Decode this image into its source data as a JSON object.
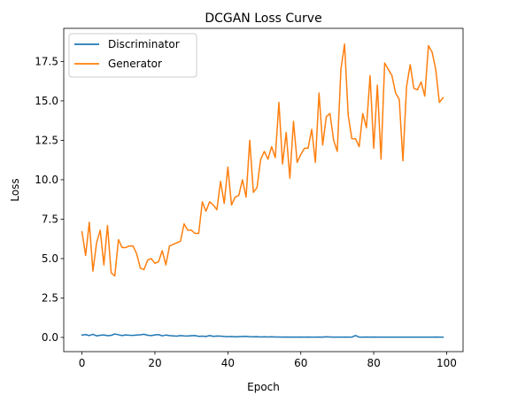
{
  "chart_data": {
    "type": "line",
    "title": "DCGAN Loss Curve",
    "xlabel": "Epoch",
    "ylabel": "Loss",
    "xlim": [
      -5,
      104.5
    ],
    "ylim": [
      -0.9,
      19.6
    ],
    "xticks": [
      0,
      20,
      40,
      60,
      80,
      100
    ],
    "yticks": [
      0.0,
      2.5,
      5.0,
      7.5,
      10.0,
      12.5,
      15.0,
      17.5
    ],
    "ytick_labels": [
      "0.0",
      "2.5",
      "5.0",
      "7.5",
      "10.0",
      "12.5",
      "15.0",
      "17.5"
    ],
    "grid": false,
    "legend_position": "top-left",
    "x": [
      0,
      1,
      2,
      3,
      4,
      5,
      6,
      7,
      8,
      9,
      10,
      11,
      12,
      13,
      14,
      15,
      16,
      17,
      18,
      19,
      20,
      21,
      22,
      23,
      24,
      25,
      26,
      27,
      28,
      29,
      30,
      31,
      32,
      33,
      34,
      35,
      36,
      37,
      38,
      39,
      40,
      41,
      42,
      43,
      44,
      45,
      46,
      47,
      48,
      49,
      50,
      51,
      52,
      53,
      54,
      55,
      56,
      57,
      58,
      59,
      60,
      61,
      62,
      63,
      64,
      65,
      66,
      67,
      68,
      69,
      70,
      71,
      72,
      73,
      74,
      75,
      76,
      77,
      78,
      79,
      80,
      81,
      82,
      83,
      84,
      85,
      86,
      87,
      88,
      89,
      90,
      91,
      92,
      93,
      94,
      95,
      96,
      97,
      98,
      99
    ],
    "series": [
      {
        "name": "Discriminator",
        "color": "#1f77b4",
        "values": [
          0.15,
          0.18,
          0.12,
          0.2,
          0.1,
          0.14,
          0.16,
          0.11,
          0.13,
          0.22,
          0.17,
          0.12,
          0.16,
          0.14,
          0.13,
          0.15,
          0.17,
          0.2,
          0.14,
          0.12,
          0.16,
          0.18,
          0.1,
          0.15,
          0.12,
          0.1,
          0.08,
          0.12,
          0.1,
          0.09,
          0.11,
          0.12,
          0.07,
          0.08,
          0.06,
          0.12,
          0.07,
          0.09,
          0.08,
          0.06,
          0.05,
          0.06,
          0.04,
          0.05,
          0.06,
          0.07,
          0.05,
          0.04,
          0.05,
          0.03,
          0.04,
          0.03,
          0.04,
          0.03,
          0.03,
          0.02,
          0.03,
          0.02,
          0.03,
          0.02,
          0.03,
          0.02,
          0.03,
          0.02,
          0.02,
          0.03,
          0.02,
          0.04,
          0.03,
          0.02,
          0.02,
          0.02,
          0.03,
          0.02,
          0.02,
          0.12,
          0.02,
          0.02,
          0.03,
          0.02,
          0.03,
          0.02,
          0.02,
          0.02,
          0.02,
          0.02,
          0.02,
          0.02,
          0.02,
          0.02,
          0.02,
          0.02,
          0.02,
          0.02,
          0.02,
          0.02,
          0.02,
          0.03,
          0.02,
          0.02
        ]
      },
      {
        "name": "Generator",
        "color": "#ff7f0e",
        "values": [
          6.7,
          5.2,
          7.3,
          4.2,
          6.0,
          6.8,
          4.6,
          7.1,
          4.1,
          3.9,
          6.2,
          5.7,
          5.7,
          5.8,
          5.8,
          5.3,
          4.4,
          4.3,
          4.9,
          5.0,
          4.7,
          4.8,
          5.5,
          4.6,
          5.8,
          5.9,
          6.0,
          6.1,
          7.2,
          6.8,
          6.8,
          6.6,
          6.6,
          8.6,
          8.0,
          8.6,
          8.4,
          8.1,
          9.9,
          8.5,
          10.8,
          8.4,
          8.9,
          9.0,
          10.0,
          8.9,
          12.5,
          9.2,
          9.5,
          11.3,
          11.8,
          11.3,
          12.1,
          11.4,
          14.9,
          11.0,
          13.0,
          10.1,
          13.7,
          11.1,
          11.6,
          12.0,
          12.0,
          13.2,
          11.1,
          15.5,
          12.2,
          14.0,
          14.2,
          12.5,
          11.8,
          17.0,
          18.6,
          14.1,
          12.6,
          12.6,
          12.1,
          14.2,
          13.3,
          16.6,
          12.0,
          16.0,
          11.3,
          17.4,
          17.0,
          16.6,
          15.5,
          15.1,
          11.2,
          15.9,
          17.3,
          15.8,
          15.7,
          16.2,
          15.3,
          18.5,
          18.1,
          17.0,
          14.9,
          15.2
        ]
      }
    ]
  }
}
